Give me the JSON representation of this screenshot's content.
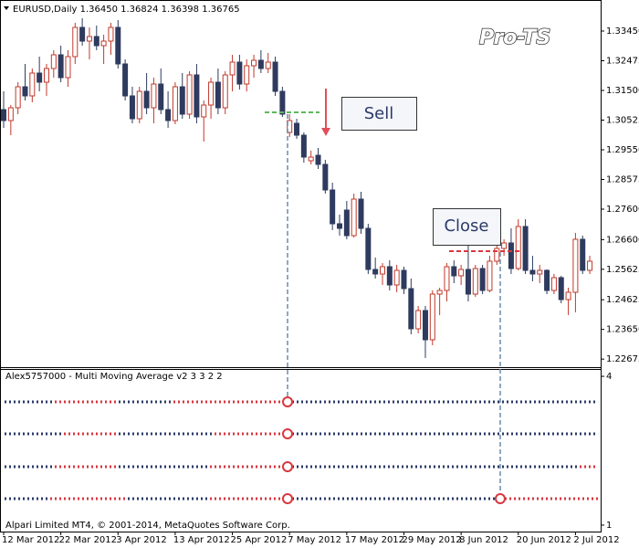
{
  "chart_data": [
    {
      "type": "candlestick",
      "title": "EURUSD,Daily  1.36450 1.36824 1.36398 1.36765",
      "annotations": [
        "Sell",
        "Close"
      ],
      "bull_color": "#c0392b",
      "bear_color": "#2e3b5e",
      "categories": [
        "12 Mar 2012",
        null,
        null,
        null,
        null,
        null,
        null,
        null,
        "22 Mar 2012",
        null,
        null,
        null,
        null,
        null,
        null,
        null,
        "3 Apr 2012",
        null,
        null,
        null,
        null,
        null,
        null,
        null,
        "13 Apr 2012",
        null,
        null,
        null,
        null,
        null,
        null,
        null,
        "25 Apr 2012",
        null,
        null,
        null,
        null,
        null,
        null,
        null,
        "7 May 2012",
        null,
        null,
        null,
        null,
        null,
        null,
        null,
        "17 May 2012",
        null,
        null,
        null,
        null,
        null,
        null,
        null,
        "29 May 2012",
        null,
        null,
        null,
        null,
        null,
        null,
        null,
        "8 Jun 2012",
        null,
        null,
        null,
        null,
        null,
        null,
        null,
        "20 Jun 2012",
        null,
        null,
        null,
        null,
        null,
        null,
        null,
        "2 Jul 2012",
        null,
        null
      ],
      "open": [
        1.3087,
        1.3051,
        1.3093,
        1.3162,
        1.3132,
        1.3207,
        1.3177,
        1.3222,
        1.3267,
        1.3192,
        1.3261,
        1.3357,
        1.3312,
        1.3327,
        1.3297,
        1.3312,
        1.3357,
        1.3237,
        1.3132,
        1.3057,
        1.3147,
        1.3093,
        1.3171,
        1.3087,
        1.3051,
        1.3162,
        1.3072,
        1.3201,
        1.3063,
        1.3102,
        1.3177,
        1.3093,
        1.3201,
        1.3243,
        1.3171,
        1.3231,
        1.3249,
        1.3222,
        1.3243,
        1.3147,
        1.3012,
        1.3042,
        1.3003,
        1.2919,
        1.2937,
        1.2907,
        1.2823,
        1.2712,
        1.2757,
        1.2673,
        1.2793,
        1.2697,
        1.2562,
        1.2547,
        1.2571,
        1.2511,
        1.2559,
        1.2499,
        1.2367,
        1.2427,
        1.2331,
        1.2481,
        1.2493,
        1.2571,
        1.2541,
        1.2562,
        1.2481,
        1.2565,
        1.2493,
        1.2589,
        1.2631,
        1.2649,
        1.2565,
        1.2703,
        1.2559,
        1.2547,
        1.2559,
        1.2493,
        1.2535,
        1.2463,
        1.2487,
        1.2661,
        1.2559
      ],
      "high": [
        1.3147,
        1.3102,
        1.3177,
        1.3237,
        1.3222,
        1.3261,
        1.3237,
        1.3282,
        1.3297,
        1.3282,
        1.3372,
        1.3387,
        1.3357,
        1.3363,
        1.3333,
        1.3372,
        1.3381,
        1.3252,
        1.3162,
        1.3162,
        1.3207,
        1.3192,
        1.3222,
        1.3147,
        1.3177,
        1.3207,
        1.3213,
        1.3237,
        1.3117,
        1.3192,
        1.3222,
        1.3213,
        1.3267,
        1.3267,
        1.3252,
        1.3267,
        1.3282,
        1.3273,
        1.3261,
        1.3162,
        1.3072,
        1.3057,
        1.3012,
        1.2952,
        1.2961,
        1.2922,
        1.2847,
        1.2742,
        1.2787,
        1.2811,
        1.2817,
        1.2712,
        1.2601,
        1.2583,
        1.2592,
        1.2577,
        1.2571,
        1.2532,
        1.2442,
        1.2442,
        1.2493,
        1.2502,
        1.2583,
        1.2592,
        1.2577,
        1.2652,
        1.2577,
        1.2577,
        1.2607,
        1.2643,
        1.2661,
        1.2697,
        1.2727,
        1.2727,
        1.2607,
        1.2577,
        1.2562,
        1.2547,
        1.2541,
        1.2502,
        1.2682,
        1.2673,
        1.2607
      ],
      "low": [
        1.3027,
        1.3003,
        1.3072,
        1.3117,
        1.3111,
        1.3147,
        1.3132,
        1.3192,
        1.3177,
        1.3162,
        1.3237,
        1.3297,
        1.3252,
        1.3282,
        1.3237,
        1.3267,
        1.3222,
        1.3117,
        1.3042,
        1.3042,
        1.3072,
        1.3042,
        1.3072,
        1.3027,
        1.3039,
        1.3057,
        1.3057,
        1.3042,
        1.2982,
        1.3057,
        1.3072,
        1.3072,
        1.3147,
        1.3153,
        1.3147,
        1.3192,
        1.3207,
        1.3207,
        1.3132,
        1.3063,
        1.2997,
        1.2991,
        1.2913,
        1.2907,
        1.2892,
        1.2811,
        1.2691,
        1.2673,
        1.2661,
        1.2667,
        1.2679,
        1.2547,
        1.2532,
        1.2511,
        1.2493,
        1.2487,
        1.2481,
        1.2349,
        1.2352,
        1.2271,
        1.2313,
        1.2412,
        1.2457,
        1.2517,
        1.2511,
        1.2457,
        1.2472,
        1.2481,
        1.2487,
        1.2577,
        1.2607,
        1.2547,
        1.2559,
        1.2547,
        1.2523,
        1.2517,
        1.2481,
        1.2481,
        1.2451,
        1.2412,
        1.2421,
        1.2547,
        1.2547
      ],
      "close": [
        1.3051,
        1.3093,
        1.3162,
        1.3132,
        1.3207,
        1.3177,
        1.3222,
        1.3267,
        1.3192,
        1.3261,
        1.3357,
        1.3312,
        1.3327,
        1.3297,
        1.3312,
        1.3357,
        1.3237,
        1.3132,
        1.3057,
        1.3147,
        1.3093,
        1.3171,
        1.3087,
        1.3051,
        1.3162,
        1.3072,
        1.3201,
        1.3063,
        1.3102,
        1.3177,
        1.3093,
        1.3201,
        1.3243,
        1.3171,
        1.3231,
        1.3249,
        1.3222,
        1.3243,
        1.3147,
        1.3072,
        1.3051,
        1.3003,
        1.2931,
        1.2931,
        1.2907,
        1.2823,
        1.2712,
        1.2697,
        1.2673,
        1.2793,
        1.2697,
        1.2562,
        1.2547,
        1.2571,
        1.2511,
        1.2559,
        1.2499,
        1.2367,
        1.2427,
        1.2331,
        1.2481,
        1.2493,
        1.2571,
        1.2541,
        1.2562,
        1.2481,
        1.2565,
        1.2493,
        1.2589,
        1.2631,
        1.2649,
        1.2565,
        1.2703,
        1.2559,
        1.2547,
        1.2559,
        1.2493,
        1.2535,
        1.2463,
        1.2487,
        1.2661,
        1.2559,
        1.2589
      ],
      "ylim": [
        1.2241,
        1.3447
      ],
      "yticks": [
        {
          "value": 1.3345,
          "label": "1.33450"
        },
        {
          "value": 1.32475,
          "label": "1.32475"
        },
        {
          "value": 1.315,
          "label": "1.31500"
        },
        {
          "value": 1.30525,
          "label": "1.30525"
        },
        {
          "value": 1.2955,
          "label": "1.29550"
        },
        {
          "value": 1.28575,
          "label": "1.28575"
        },
        {
          "value": 1.276,
          "label": "1.27600"
        },
        {
          "value": 1.266,
          "label": "1.26600"
        },
        {
          "value": 1.25625,
          "label": "1.25625"
        },
        {
          "value": 1.24625,
          "label": "1.24625"
        },
        {
          "value": 1.2365,
          "label": "1.23650"
        },
        {
          "value": 1.22675,
          "label": "1.22675"
        }
      ]
    },
    {
      "type": "indicator",
      "title": "Alex5757000 - Multi Moving Average v2 3 3 2 2",
      "ylim": [
        0.87,
        4.13
      ],
      "yticks": [
        4,
        1
      ]
    }
  ],
  "watermark": "Pro-TS",
  "footer": "Alpari Limited MT4, © 2001-2014, MetaQuotes Software Corp."
}
